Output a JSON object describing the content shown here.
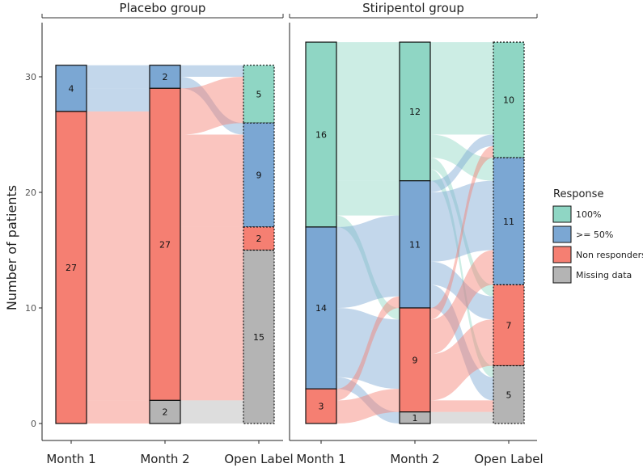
{
  "chart_data": {
    "type": "alluvial",
    "ylabel": "Number of patients",
    "ylim": [
      0,
      34
    ],
    "yticks": [
      0,
      10,
      20,
      30
    ],
    "x": [
      "Month 1",
      "Month 2",
      "Open Label"
    ],
    "legend": {
      "title": "Response",
      "position": "right",
      "items": [
        {
          "key": "100",
          "label": "100%",
          "color": "#8fd6c4"
        },
        {
          "key": "50",
          "label": ">= 50%",
          "color": "#7ba7d3"
        },
        {
          "key": "non",
          "label": "Non responders",
          "color": "#f57f72"
        },
        {
          "key": "miss",
          "label": "Missing data",
          "color": "#b4b4b4"
        }
      ]
    },
    "facets": [
      {
        "title": "Placebo group",
        "stacks": [
          [
            {
              "cat": "50",
              "value": 4
            },
            {
              "cat": "non",
              "value": 27
            }
          ],
          [
            {
              "cat": "50",
              "value": 2
            },
            {
              "cat": "non",
              "value": 27
            },
            {
              "cat": "miss",
              "value": 2
            }
          ],
          [
            {
              "cat": "100",
              "value": 5
            },
            {
              "cat": "50",
              "value": 9
            },
            {
              "cat": "non",
              "value": 2
            },
            {
              "cat": "miss",
              "value": 15
            }
          ]
        ],
        "flows": [
          [
            {
              "from": "50",
              "to": "50",
              "value": 2
            },
            {
              "from": "50",
              "to": "non",
              "value": 2
            },
            {
              "from": "non",
              "to": "non",
              "value": 25
            },
            {
              "from": "non",
              "to": "miss",
              "value": 2
            }
          ],
          [
            {
              "from": "50",
              "to": "100",
              "value": 1
            },
            {
              "from": "50",
              "to": "50",
              "value": 1
            },
            {
              "from": "non",
              "to": "100",
              "value": 4
            },
            {
              "from": "non",
              "to": "50",
              "value": 8
            },
            {
              "from": "non",
              "to": "non",
              "value": 2
            },
            {
              "from": "non",
              "to": "miss",
              "value": 13
            },
            {
              "from": "miss",
              "to": "miss",
              "value": 2
            }
          ]
        ]
      },
      {
        "title": "Stiripentol group",
        "stacks": [
          [
            {
              "cat": "100",
              "value": 16
            },
            {
              "cat": "50",
              "value": 14
            },
            {
              "cat": "non",
              "value": 3
            }
          ],
          [
            {
              "cat": "100",
              "value": 12
            },
            {
              "cat": "50",
              "value": 11
            },
            {
              "cat": "non",
              "value": 9
            },
            {
              "cat": "miss",
              "value": 1
            }
          ],
          [
            {
              "cat": "100",
              "value": 10
            },
            {
              "cat": "50",
              "value": 11
            },
            {
              "cat": "non",
              "value": 7
            },
            {
              "cat": "miss",
              "value": 5
            }
          ]
        ],
        "flows": [
          [
            {
              "from": "100",
              "to": "100",
              "value": 12
            },
            {
              "from": "100",
              "to": "50",
              "value": 3
            },
            {
              "from": "100",
              "to": "non",
              "value": 1
            },
            {
              "from": "50",
              "to": "50",
              "value": 7
            },
            {
              "from": "50",
              "to": "non",
              "value": 6
            },
            {
              "from": "50",
              "to": "miss",
              "value": 1
            },
            {
              "from": "non",
              "to": "50",
              "value": 1
            },
            {
              "from": "non",
              "to": "non",
              "value": 2
            }
          ],
          [
            {
              "from": "100",
              "to": "100",
              "value": 8
            },
            {
              "from": "100",
              "to": "50",
              "value": 2
            },
            {
              "from": "100",
              "to": "non",
              "value": 1
            },
            {
              "from": "100",
              "to": "miss",
              "value": 1
            },
            {
              "from": "50",
              "to": "100",
              "value": 1
            },
            {
              "from": "50",
              "to": "50",
              "value": 6
            },
            {
              "from": "50",
              "to": "non",
              "value": 2
            },
            {
              "from": "50",
              "to": "miss",
              "value": 2
            },
            {
              "from": "non",
              "to": "100",
              "value": 1
            },
            {
              "from": "non",
              "to": "50",
              "value": 3
            },
            {
              "from": "non",
              "to": "non",
              "value": 4
            },
            {
              "from": "non",
              "to": "miss",
              "value": 1
            },
            {
              "from": "miss",
              "to": "miss",
              "value": 1
            }
          ]
        ]
      }
    ]
  }
}
